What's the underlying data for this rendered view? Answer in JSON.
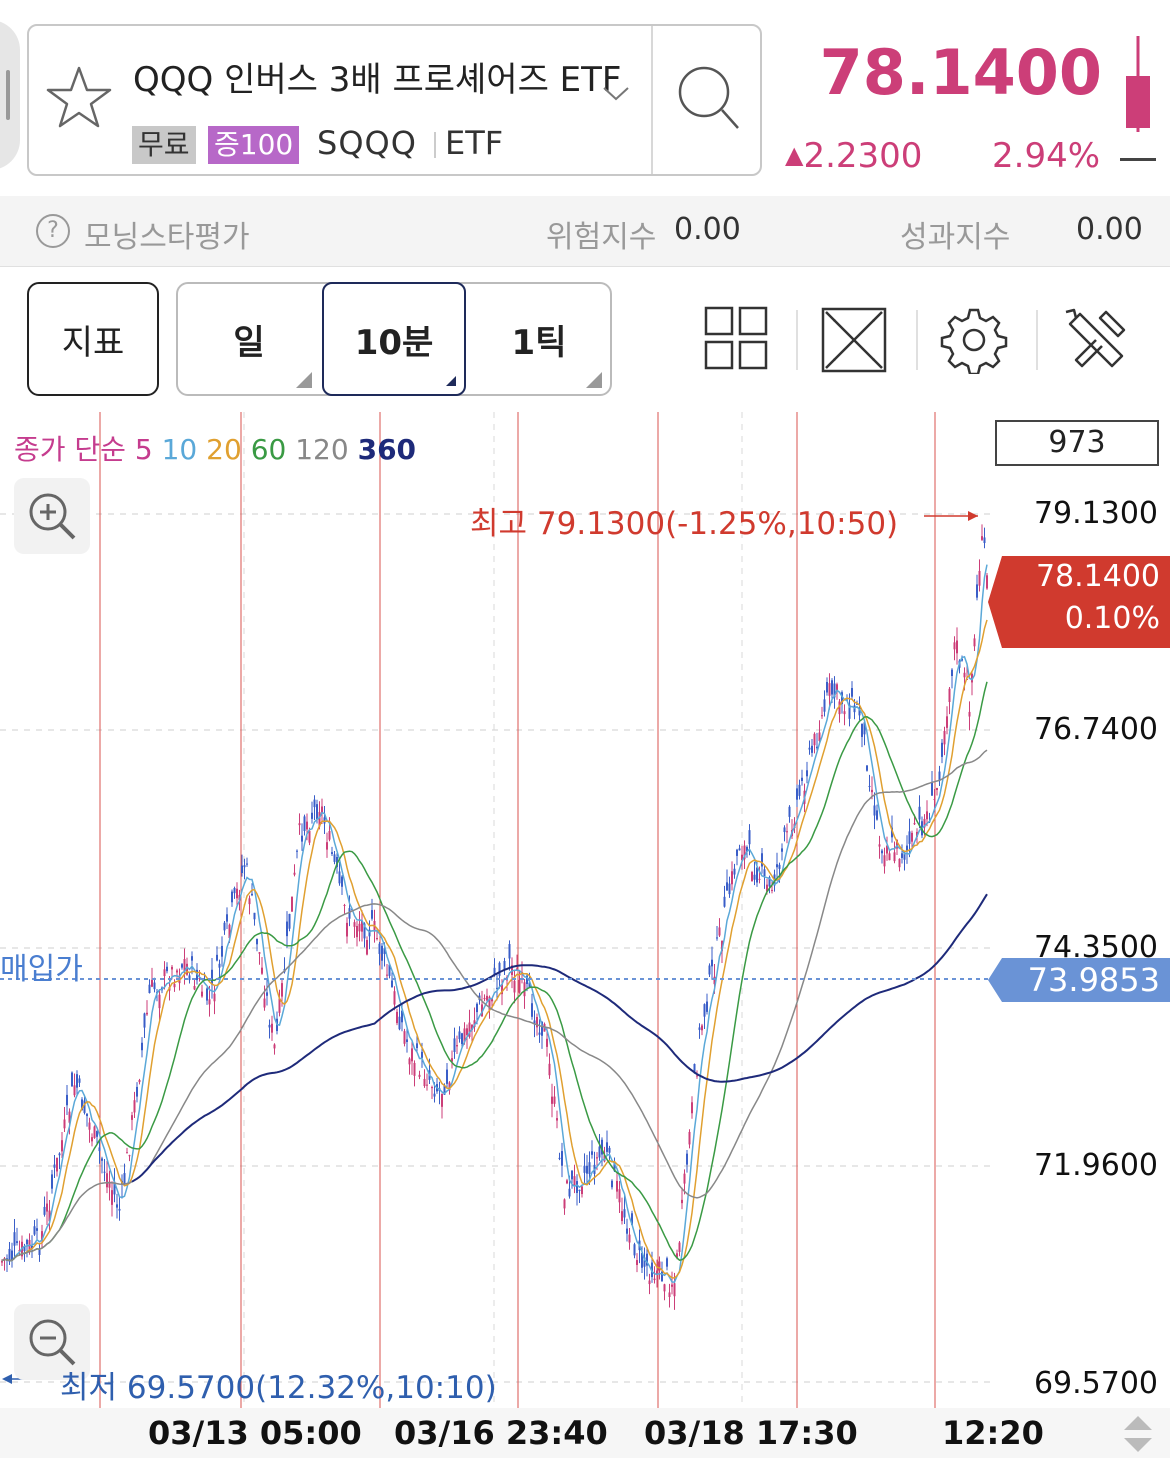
{
  "header": {
    "name": "QQQ 인버스 3배 프로셰어즈 ETF",
    "badge_free": "무료",
    "badge_margin": "증100",
    "ticker": "SQQQ",
    "type": "ETF",
    "price": "78.1400",
    "change": "2.2300",
    "change_pct": "2.94%"
  },
  "info": {
    "morningstar_label": "모닝스타평가",
    "risk_label": "위험지수",
    "risk_value": "0.00",
    "perf_label": "성과지수",
    "perf_value": "0.00"
  },
  "toolbar": {
    "indicator": "지표",
    "periods": [
      "일",
      "10분",
      "1틱"
    ],
    "active_period": "10분"
  },
  "legend": {
    "prefix": "종가 단순",
    "items": [
      {
        "label": "5",
        "color": "#c53c8e"
      },
      {
        "label": "10",
        "color": "#5aa8d8"
      },
      {
        "label": "20",
        "color": "#e0a030"
      },
      {
        "label": "60",
        "color": "#3a9a44"
      },
      {
        "label": "120",
        "color": "#888888"
      },
      {
        "label": "360",
        "color": "#1e2a7a"
      }
    ]
  },
  "count_box": "973",
  "price_axis": [
    "79.1300",
    "76.7400",
    "74.3500",
    "71.9600",
    "69.5700"
  ],
  "current_tag": {
    "price": "78.1400",
    "pct": "0.10%"
  },
  "buy_tag": {
    "label": "매입가",
    "price": "73.9853"
  },
  "high_label": "최고 79.1300(-1.25%,10:50)",
  "low_label": "최저 69.5700(12.32%,10:10)",
  "time_axis": [
    "03/13 05:00",
    "03/16 23:40",
    "03/18 17:30",
    "12:20"
  ],
  "colors": {
    "up": "#cc3e78",
    "down": "#3a5ec8",
    "accent": "#d03a2e"
  }
}
